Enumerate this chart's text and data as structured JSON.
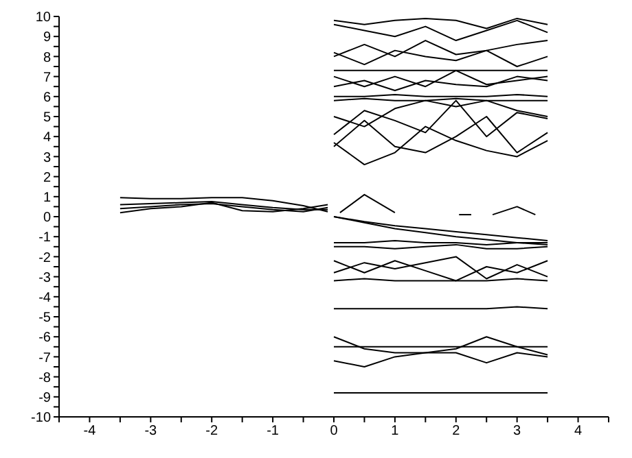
{
  "chart_data": {
    "type": "line",
    "xlim": [
      -4.5,
      4.5
    ],
    "ylim": [
      -10,
      10
    ],
    "xticks": [
      {
        "value": -4.5,
        "label": null
      },
      -4,
      {
        "value": -3.5,
        "label": null
      },
      -3,
      {
        "value": -2.5,
        "label": null
      },
      -2,
      {
        "value": -1.5,
        "label": null
      },
      -1,
      {
        "value": -0.5,
        "label": null
      },
      0,
      {
        "value": 0.5,
        "label": null
      },
      1,
      {
        "value": 1.5,
        "label": null
      },
      2,
      {
        "value": 2.5,
        "label": null
      },
      3,
      {
        "value": 3.5,
        "label": null
      },
      4,
      {
        "value": 4.5,
        "label": null
      }
    ],
    "yticks": [
      -10,
      {
        "value": -9.5,
        "label": null
      },
      -9,
      {
        "value": -8.5,
        "label": null
      },
      -8,
      {
        "value": -7.5,
        "label": null
      },
      -7,
      {
        "value": -6.5,
        "label": null
      },
      -6,
      {
        "value": -5.5,
        "label": null
      },
      -5,
      {
        "value": -4.5,
        "label": null
      },
      -4,
      {
        "value": -3.5,
        "label": null
      },
      -3,
      {
        "value": -2.5,
        "label": null
      },
      -2,
      {
        "value": -1.5,
        "label": null
      },
      -1,
      {
        "value": -0.5,
        "label": null
      },
      0,
      {
        "value": 0.5,
        "label": null
      },
      1,
      {
        "value": 1.5,
        "label": null
      },
      2,
      {
        "value": 2.5,
        "label": null
      },
      3,
      {
        "value": 3.5,
        "label": null
      },
      4,
      {
        "value": 4.5,
        "label": null
      },
      5,
      {
        "value": 5.5,
        "label": null
      },
      6,
      {
        "value": 6.5,
        "label": null
      },
      7,
      {
        "value": 7.5,
        "label": null
      },
      8,
      {
        "value": 8.5,
        "label": null
      },
      9,
      {
        "value": 9.5,
        "label": null
      },
      10
    ],
    "marker": "none",
    "line_style": "solid",
    "series": [
      {
        "color": "#000000",
        "x": [
          -3.5,
          -3,
          -2.5,
          -2,
          -1.5,
          -1,
          -0.5,
          -0.1
        ],
        "values": [
          0.95,
          0.9,
          0.9,
          0.95,
          0.95,
          0.8,
          0.55,
          0.25
        ]
      },
      {
        "color": "#000000",
        "x": [
          -3.5,
          -3,
          -2.5,
          -2,
          -1.5,
          -1,
          -0.5,
          -0.1
        ],
        "values": [
          0.6,
          0.65,
          0.7,
          0.75,
          0.6,
          0.45,
          0.35,
          0.35
        ]
      },
      {
        "color": "#000000",
        "x": [
          -3.5,
          -3,
          -2.5,
          -2,
          -1.5,
          -1,
          -0.5,
          -0.1
        ],
        "values": [
          0.4,
          0.5,
          0.6,
          0.65,
          0.5,
          0.35,
          0.25,
          0.45
        ]
      },
      {
        "color": "#000000",
        "x": [
          -3.5,
          -3,
          -2.5,
          -2,
          -1.5,
          -1,
          -0.5,
          -0.1
        ],
        "values": [
          0.2,
          0.4,
          0.5,
          0.7,
          0.3,
          0.25,
          0.4,
          0.6
        ]
      },
      {
        "color": "#000000",
        "x": [
          0.1,
          0.5,
          1.0
        ],
        "values": [
          0.2,
          1.1,
          0.2
        ]
      },
      {
        "color": "#000000",
        "x": [
          2.6,
          3.0,
          3.3
        ],
        "values": [
          0.1,
          0.5,
          0.1
        ]
      },
      {
        "color": "#000000",
        "x": [
          2.05,
          2.25
        ],
        "values": [
          0.1,
          0.1
        ]
      },
      {
        "color": "#000000",
        "x": [
          0,
          0.5,
          1,
          1.5,
          2,
          2.5,
          3,
          3.5
        ],
        "values": [
          0,
          -0.25,
          -0.45,
          -0.6,
          -0.75,
          -0.9,
          -1.05,
          -1.2
        ]
      },
      {
        "color": "#000000",
        "x": [
          0,
          0.5,
          1,
          1.5,
          2,
          2.5,
          3,
          3.5
        ],
        "values": [
          0,
          -0.3,
          -0.6,
          -0.8,
          -1.0,
          -1.15,
          -1.3,
          -1.4
        ]
      },
      {
        "color": "#000000",
        "x": [
          0,
          0.5,
          1,
          1.5,
          2,
          2.5,
          3,
          3.5
        ],
        "values": [
          -1.3,
          -1.3,
          -1.2,
          -1.3,
          -1.3,
          -1.4,
          -1.3,
          -1.3
        ]
      },
      {
        "color": "#000000",
        "x": [
          0,
          0.5,
          1,
          1.5,
          2,
          2.5,
          3,
          3.5
        ],
        "values": [
          -1.5,
          -1.5,
          -1.6,
          -1.5,
          -1.4,
          -1.6,
          -1.6,
          -1.5
        ]
      },
      {
        "color": "#000000",
        "x": [
          0,
          0.5,
          1,
          1.5,
          2,
          2.5,
          3,
          3.5
        ],
        "values": [
          -2.2,
          -2.8,
          -2.2,
          -2.7,
          -3.2,
          -2.5,
          -2.8,
          -2.2
        ]
      },
      {
        "color": "#000000",
        "x": [
          0,
          0.5,
          1,
          1.5,
          2,
          2.5,
          3,
          3.5
        ],
        "values": [
          -2.8,
          -2.3,
          -2.6,
          -2.3,
          -2.0,
          -3.1,
          -2.4,
          -3.0
        ]
      },
      {
        "color": "#000000",
        "x": [
          0,
          0.5,
          1,
          1.5,
          2,
          2.5,
          3,
          3.5
        ],
        "values": [
          -3.2,
          -3.1,
          -3.2,
          -3.2,
          -3.2,
          -3.2,
          -3.1,
          -3.2
        ]
      },
      {
        "color": "#000000",
        "x": [
          0,
          0.5,
          1,
          1.5,
          2,
          2.5,
          3,
          3.5
        ],
        "values": [
          -4.6,
          -4.6,
          -4.6,
          -4.6,
          -4.6,
          -4.6,
          -4.5,
          -4.6
        ]
      },
      {
        "color": "#000000",
        "x": [
          0,
          0.5,
          1,
          1.5,
          2,
          2.5,
          3,
          3.5
        ],
        "values": [
          -6.0,
          -6.6,
          -6.8,
          -6.8,
          -6.6,
          -6.0,
          -6.5,
          -6.9
        ]
      },
      {
        "color": "#000000",
        "x": [
          0,
          0.5,
          1,
          1.5,
          2,
          2.5,
          3,
          3.5
        ],
        "values": [
          -7.2,
          -7.5,
          -7.0,
          -6.8,
          -6.8,
          -7.3,
          -6.8,
          -7.0
        ]
      },
      {
        "color": "#000000",
        "x": [
          0,
          0.5,
          1,
          1.5,
          2,
          2.5,
          3,
          3.5
        ],
        "values": [
          -6.5,
          -6.5,
          -6.5,
          -6.5,
          -6.5,
          -6.5,
          -6.5,
          -6.5
        ]
      },
      {
        "color": "#000000",
        "x": [
          0,
          0.5,
          1,
          1.5,
          2,
          2.5,
          3,
          3.5
        ],
        "values": [
          -8.8,
          -8.8,
          -8.8,
          -8.8,
          -8.8,
          -8.8,
          -8.8,
          -8.8
        ]
      },
      {
        "color": "#000000",
        "x": [
          0,
          0.5,
          1,
          1.5,
          2,
          2.5,
          3,
          3.5
        ],
        "values": [
          3.7,
          2.6,
          3.2,
          4.5,
          3.8,
          3.3,
          3.0,
          3.8
        ]
      },
      {
        "color": "#000000",
        "x": [
          0,
          0.5,
          1,
          1.5,
          2,
          2.5,
          3,
          3.5
        ],
        "values": [
          3.5,
          4.8,
          3.5,
          3.2,
          4.0,
          5.0,
          3.2,
          4.2
        ]
      },
      {
        "color": "#000000",
        "x": [
          0,
          0.5,
          1,
          1.5,
          2,
          2.5,
          3,
          3.5
        ],
        "values": [
          4.1,
          5.3,
          4.8,
          4.2,
          5.8,
          4.0,
          5.2,
          4.9
        ]
      },
      {
        "color": "#000000",
        "x": [
          0,
          0.5,
          1,
          1.5,
          2,
          2.5,
          3,
          3.5
        ],
        "values": [
          5.0,
          4.5,
          5.4,
          5.8,
          5.5,
          5.8,
          5.3,
          5.0
        ]
      },
      {
        "color": "#000000",
        "x": [
          0,
          0.5,
          1,
          1.5,
          2,
          2.5,
          3,
          3.5
        ],
        "values": [
          5.8,
          5.9,
          5.8,
          5.8,
          5.9,
          5.8,
          5.8,
          5.8
        ]
      },
      {
        "color": "#000000",
        "x": [
          0,
          0.5,
          1,
          1.5,
          2,
          2.5,
          3,
          3.5
        ],
        "values": [
          6.0,
          6.0,
          6.1,
          6.0,
          6.0,
          6.0,
          6.1,
          6.0
        ]
      },
      {
        "color": "#000000",
        "x": [
          0,
          0.5,
          1,
          1.5,
          2,
          2.5,
          3,
          3.5
        ],
        "values": [
          6.5,
          6.8,
          6.3,
          6.8,
          6.6,
          6.5,
          7.0,
          6.8
        ]
      },
      {
        "color": "#000000",
        "x": [
          0,
          0.5,
          1,
          1.5,
          2,
          2.5,
          3,
          3.5
        ],
        "values": [
          7.0,
          6.5,
          7.0,
          6.5,
          7.3,
          6.6,
          6.8,
          7.0
        ]
      },
      {
        "color": "#000000",
        "x": [
          0,
          0.5,
          1,
          1.5,
          2,
          2.5,
          3,
          3.5
        ],
        "values": [
          7.3,
          7.3,
          7.3,
          7.3,
          7.3,
          7.3,
          7.3,
          7.3
        ]
      },
      {
        "color": "#000000",
        "x": [
          0,
          0.5,
          1,
          1.5,
          2,
          2.5,
          3,
          3.5
        ],
        "values": [
          8.2,
          7.6,
          8.3,
          8.0,
          7.8,
          8.3,
          7.5,
          8.0
        ]
      },
      {
        "color": "#000000",
        "x": [
          0,
          0.5,
          1,
          1.5,
          2,
          2.5,
          3,
          3.5
        ],
        "values": [
          8.0,
          8.6,
          8.0,
          8.8,
          8.1,
          8.3,
          8.6,
          8.8
        ]
      },
      {
        "color": "#000000",
        "x": [
          0,
          0.5,
          1,
          1.5,
          2,
          2.5,
          3,
          3.5
        ],
        "values": [
          9.6,
          9.3,
          9.0,
          9.5,
          8.8,
          9.3,
          9.8,
          9.2
        ]
      },
      {
        "color": "#000000",
        "x": [
          0,
          0.5,
          1,
          1.5,
          2,
          2.5,
          3,
          3.5
        ],
        "values": [
          9.8,
          9.6,
          9.8,
          9.9,
          9.8,
          9.4,
          9.9,
          9.6
        ]
      }
    ]
  }
}
